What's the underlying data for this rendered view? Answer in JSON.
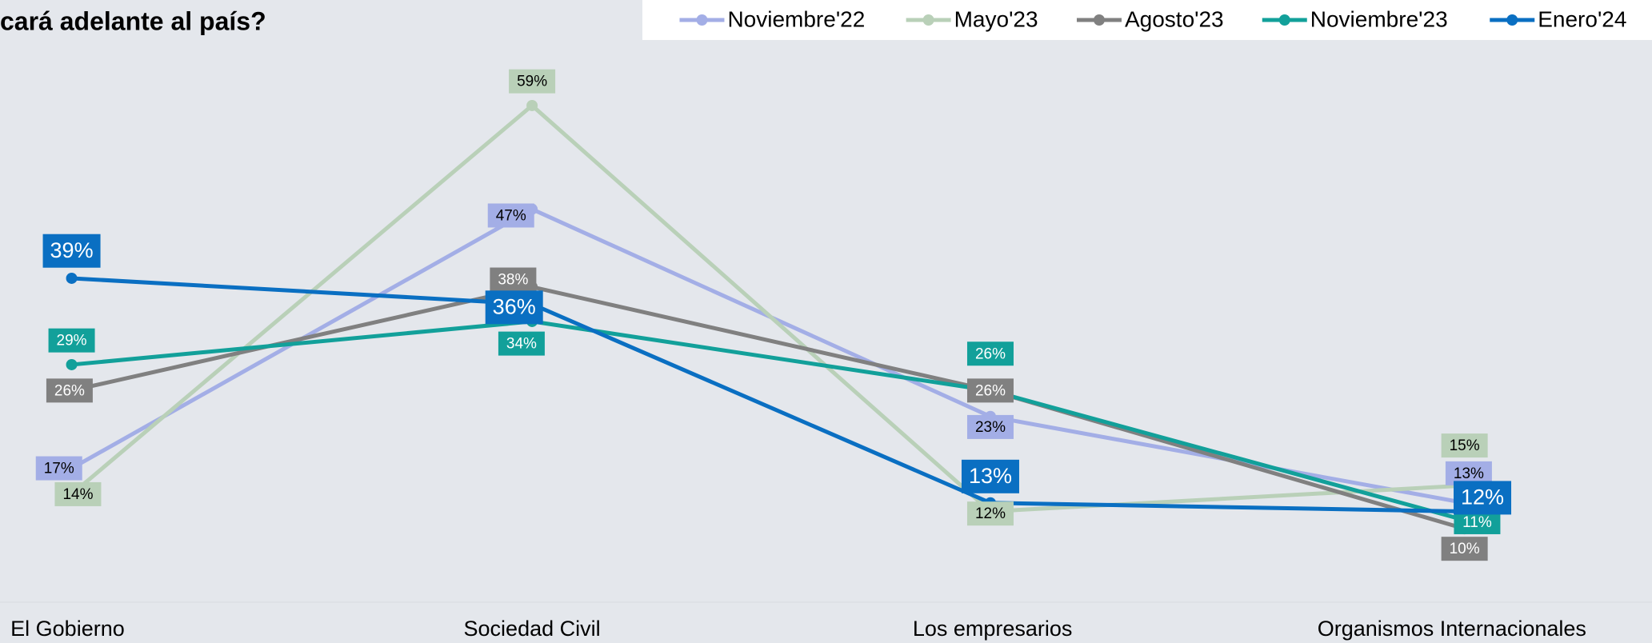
{
  "chart_data": {
    "type": "line",
    "title": "cará adelante al país?",
    "categories": [
      "El Gobierno",
      "Sociedad Civil",
      "Los empresarios",
      "Organismos Internacionales"
    ],
    "series": [
      {
        "name": "Noviembre'22",
        "color": "#a3aee6",
        "label_color": "#000000",
        "values": [
          17,
          47,
          23,
          13
        ],
        "value_labels": [
          "17%",
          "47%",
          "23%",
          "13%"
        ]
      },
      {
        "name": "Mayo'23",
        "color": "#b9d0b8",
        "label_color": "#000000",
        "values": [
          14,
          59,
          12,
          15
        ],
        "value_labels": [
          "14%",
          "59%",
          "12%",
          "15%"
        ]
      },
      {
        "name": "Agosto'23",
        "color": "#808080",
        "label_color": "#ffffff",
        "values": [
          26,
          38,
          26,
          10
        ],
        "value_labels": [
          "26%",
          "38%",
          "26%",
          "10%"
        ]
      },
      {
        "name": "Noviembre'23",
        "color": "#12a09a",
        "label_color": "#ffffff",
        "values": [
          29,
          34,
          26,
          11
        ],
        "value_labels": [
          "29%",
          "34%",
          "26%",
          "11%"
        ]
      },
      {
        "name": "Enero'24",
        "color": "#0a6fc2",
        "label_color": "#ffffff",
        "values": [
          39,
          36,
          13,
          12
        ],
        "value_labels": [
          "39%",
          "36%",
          "13%",
          "12%"
        ]
      }
    ],
    "legend": "top-right"
  }
}
